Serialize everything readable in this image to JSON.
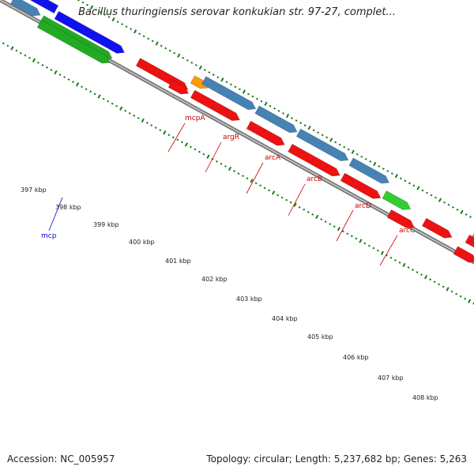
{
  "title": "Bacillus thuringiensis serovar konkukian str. 97-27, complet...",
  "footer": {
    "accession": "Accession: NC_005957",
    "stats": "Topology: circular; Length: 5,237,682 bp; Genes: 5,263"
  },
  "tick_labels": [
    "397 kbp",
    "398 kbp",
    "399 kbp",
    "400 kbp",
    "401 kbp",
    "402 kbp",
    "403 kbp",
    "404 kbp",
    "405 kbp",
    "406 kbp",
    "407 kbp",
    "408 kbp"
  ],
  "gene_labels": [
    {
      "name": "mcpA",
      "color": "#cc0000"
    },
    {
      "name": "argR",
      "color": "#cc0000"
    },
    {
      "name": "arcA",
      "color": "#cc0000"
    },
    {
      "name": "arcB",
      "color": "#cc0000"
    },
    {
      "name": "arcD",
      "color": "#cc0000"
    },
    {
      "name": "arcC",
      "color": "#cc0000"
    },
    {
      "name": "mcp",
      "color": "#0000cc"
    }
  ],
  "colors": {
    "backbone": "#7a7a7a",
    "ticks": "#1a7a1a",
    "red": "#ee1111",
    "blue": "#1111ee",
    "steelblue": "#4682b4",
    "green": "#33cc33",
    "darkgreen": "#22aa22",
    "orange": "#ff9900",
    "cyan": "#22cccc"
  }
}
